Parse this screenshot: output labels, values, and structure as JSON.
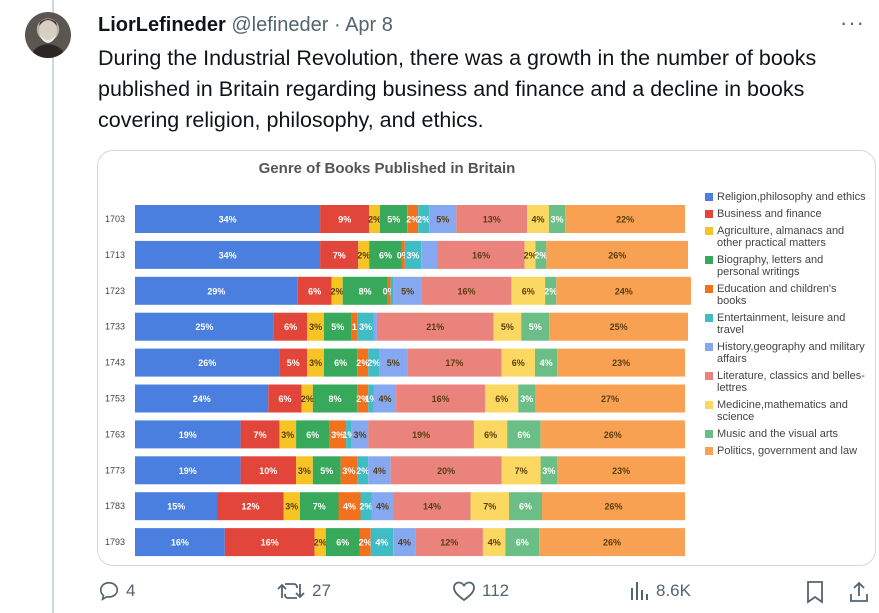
{
  "author": {
    "name": "LiorLefineder",
    "handle": "@lefineder",
    "separator": "·",
    "date": "Apr 8"
  },
  "more_menu": "···",
  "tweet_text": "During the Industrial Revolution, there was a growth in the number of books published in Britain regarding business and finance and a decline in books covering religion, philosophy, and ethics.",
  "actions": {
    "replies": "4",
    "retweets": "27",
    "likes": "112",
    "views": "8.6K"
  },
  "icons": {
    "reply": "reply-icon",
    "retweet": "retweet-icon",
    "like": "heart-icon",
    "views": "views-icon",
    "bookmark": "bookmark-icon",
    "share": "share-icon",
    "more": "more-icon"
  },
  "chart_data": {
    "type": "bar",
    "orientation": "horizontal-stacked-100",
    "title": "Genre of Books Published in Britain",
    "categories": [
      "1703",
      "1713",
      "1723",
      "1733",
      "1743",
      "1753",
      "1763",
      "1773",
      "1783",
      "1793"
    ],
    "legend_position": "right",
    "series": [
      {
        "name": "Religion,philosophy and ethics",
        "color": "#4a7fe0",
        "values": [
          34,
          34,
          29,
          25,
          26,
          24,
          19,
          19,
          15,
          16
        ]
      },
      {
        "name": "Business and finance",
        "color": "#e2463a",
        "values": [
          9,
          7,
          6,
          6,
          5,
          6,
          7,
          10,
          12,
          16
        ]
      },
      {
        "name": "Agriculture, almanacs and other practical matters",
        "color": "#f7c425",
        "values": [
          2,
          2,
          2,
          3,
          3,
          2,
          3,
          3,
          3,
          2
        ]
      },
      {
        "name": "Biography, letters and personal writings",
        "color": "#38a85a",
        "values": [
          5,
          6,
          8,
          5,
          6,
          8,
          6,
          5,
          7,
          6
        ]
      },
      {
        "name": "Education and children's books",
        "color": "#f2711c",
        "values": [
          2,
          0,
          0,
          1,
          2,
          2,
          3,
          3,
          4,
          2
        ]
      },
      {
        "name": "Entertainment, leisure and travel",
        "color": "#3fbcc4",
        "values": [
          2,
          3,
          0,
          3,
          2,
          1,
          1,
          2,
          2,
          4
        ]
      },
      {
        "name": " History,geography and military affairs",
        "color": "#86a8f0",
        "values": [
          5,
          3,
          5,
          0,
          5,
          4,
          3,
          4,
          4,
          4
        ]
      },
      {
        "name": "Literature, classics and belles-lettres",
        "color": "#e9837c",
        "values": [
          13,
          16,
          16,
          21,
          17,
          16,
          19,
          20,
          14,
          12
        ]
      },
      {
        "name": "Medicine,mathematics and science",
        "color": "#fad861",
        "values": [
          4,
          2,
          6,
          5,
          6,
          6,
          6,
          7,
          7,
          4
        ]
      },
      {
        "name": "Music and the visual arts",
        "color": "#6bbf86",
        "values": [
          3,
          2,
          2,
          5,
          4,
          3,
          6,
          3,
          6,
          6
        ]
      },
      {
        "name": "Politics, government and law",
        "color": "#f8a153",
        "values": [
          22,
          26,
          24,
          25,
          23,
          27,
          26,
          23,
          26,
          26
        ]
      }
    ],
    "data_labels": [
      [
        "34%",
        "9%",
        "2%",
        "5%",
        "2%",
        "2%",
        "5%",
        "13%",
        "4%",
        "3%",
        "22%"
      ],
      [
        "34%",
        "7%",
        "2%",
        "6%",
        "0%",
        "3%",
        "",
        "16%",
        "2%",
        "2%",
        "26%"
      ],
      [
        "29%",
        "6%",
        "2%",
        "8%",
        "0%",
        "",
        "5%",
        "16%",
        "6%",
        "2%",
        "24%"
      ],
      [
        "25%",
        "6%",
        "3%",
        "5%",
        "1",
        "3%",
        "",
        "21%",
        "5%",
        "5%",
        "25%"
      ],
      [
        "26%",
        "5%",
        "3%",
        "6%",
        "2%",
        "2%",
        "5%",
        "17%",
        "6%",
        "4%",
        "23%"
      ],
      [
        "24%",
        "6%",
        "2%",
        "8%",
        "2%",
        "1%",
        "4%",
        "16%",
        "6%",
        "3%",
        "27%"
      ],
      [
        "19%",
        "7%",
        "3%",
        "6%",
        "3%",
        "1%",
        "3%",
        "19%",
        "6%",
        "6%",
        "26%"
      ],
      [
        "19%",
        "10%",
        "3%",
        "5%",
        "3%",
        "2%",
        "4%",
        "20%",
        "7%",
        "3%",
        "23%"
      ],
      [
        "15%",
        "12%",
        "3%",
        "7%",
        "4%",
        "2%",
        "4%",
        "14%",
        "7%",
        "6%",
        "26%"
      ],
      [
        "16%",
        "16%",
        "2%",
        "6%",
        "2%",
        "4%",
        "4%",
        "12%",
        "4%",
        "6%",
        "26%"
      ]
    ]
  }
}
